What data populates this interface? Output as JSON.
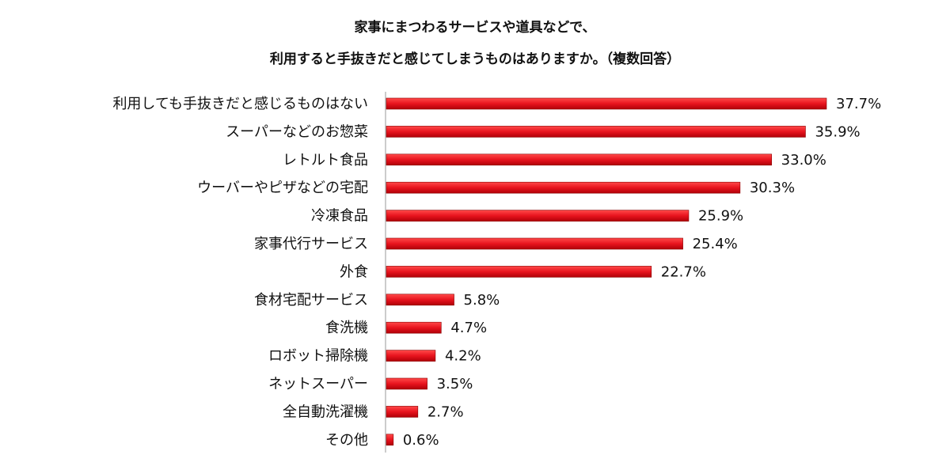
{
  "chart_data": {
    "type": "bar",
    "orientation": "horizontal",
    "title": [
      "家事にまつわるサービスや道具などで、",
      "利用すると手抜きだと感じてしまうものはありますか。（複数回答）"
    ],
    "categories": [
      "利用しても手抜きだと感じるものはない",
      "スーパーなどのお惣菜",
      "レトルト食品",
      "ウーバーやピザなどの宅配",
      "冷凍食品",
      "家事代行サービス",
      "外食",
      "食材宅配サービス",
      "食洗機",
      "ロボット掃除機",
      "ネットスーパー",
      "全自動洗濯機",
      "その他"
    ],
    "values": [
      37.7,
      35.9,
      33.0,
      30.3,
      25.9,
      25.4,
      22.7,
      5.8,
      4.7,
      4.2,
      3.5,
      2.7,
      0.6
    ],
    "value_labels": [
      "37.7%",
      "35.9%",
      "33.0%",
      "30.3%",
      "25.9%",
      "25.4%",
      "22.7%",
      "5.8%",
      "4.7%",
      "4.2%",
      "3.5%",
      "2.7%",
      "0.6%"
    ],
    "unit": "%",
    "xlim": [
      0,
      40
    ],
    "grid": false,
    "bar_color": "#e8141e",
    "bar_edge_color": "#8a0000"
  }
}
